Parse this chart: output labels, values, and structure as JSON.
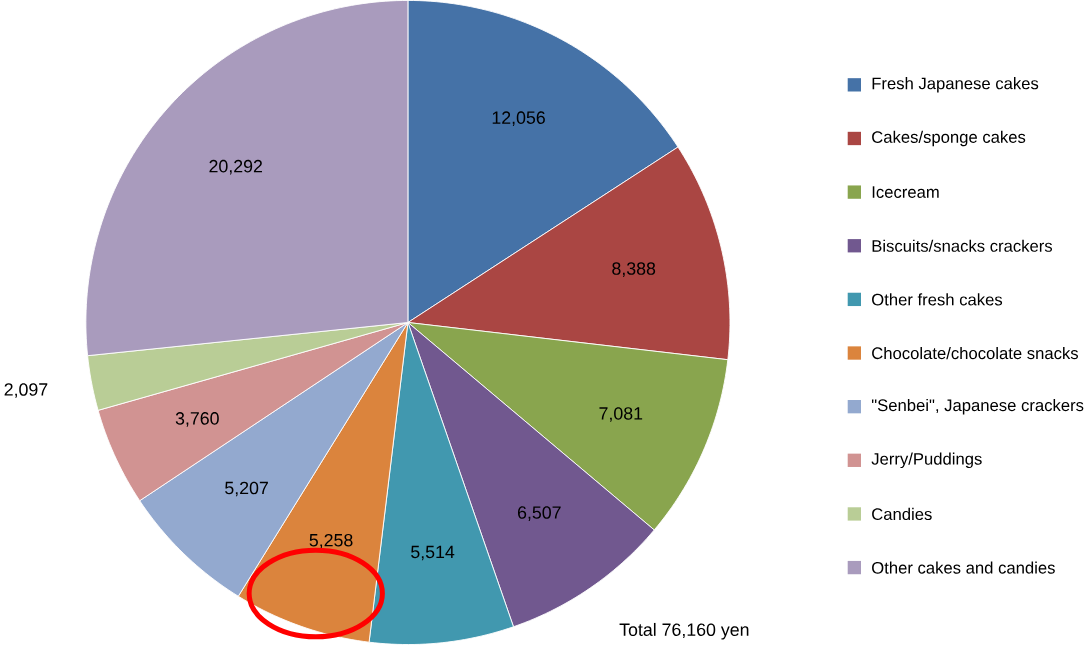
{
  "chart_data": {
    "type": "pie",
    "categories": [
      "Fresh Japanese cakes",
      "Cakes/sponge cakes",
      "Icecream",
      "Biscuits/snacks crackers",
      "Other fresh cakes",
      "Chocolate/chocolate snacks",
      "\"Senbei\", Japanese crackers",
      "Jerry/Puddings",
      "Candies",
      "Other cakes and candies"
    ],
    "values": [
      12056,
      8388,
      7081,
      6507,
      5514,
      5258,
      5207,
      3760,
      2097,
      20292
    ],
    "colors": [
      "#4572a7",
      "#aa4643",
      "#89a54e",
      "#71588f",
      "#4198af",
      "#db843d",
      "#93a9cf",
      "#d19392",
      "#b9cd96",
      "#a99bbd"
    ],
    "value_labels": [
      "12,056",
      "8,388",
      "7,081",
      "6,507",
      "5,514",
      "5,258",
      "5,207",
      "3,760",
      "2,097",
      "20,292"
    ],
    "legend": "right",
    "annotations": [
      "Total 76,160 yen"
    ]
  }
}
